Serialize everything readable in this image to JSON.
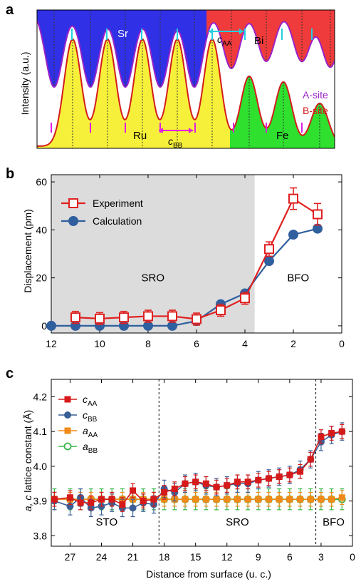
{
  "panels": {
    "a": "a",
    "b": "b",
    "c": "c"
  },
  "chart_data": [
    {
      "type": "line",
      "panel": "a",
      "ylabel": "Intensity (a.u.)",
      "xlabel": "",
      "a_site_peaks": 8,
      "b_site_peaks": 9,
      "labels": {
        "sr": "Sr",
        "bi": "Bi",
        "ru": "Ru",
        "fe": "Fe",
        "caa_main": "c",
        "caa_sub": "AA",
        "cbb_main": "c",
        "cbb_sub": "BB",
        "a_site": "A-site",
        "b_site": "B-site"
      },
      "colors": {
        "sr_fill": "#3030e6",
        "bi_fill": "#ef3b3b",
        "ru_fill": "#f7f03a",
        "fe_fill": "#2fe02f",
        "a_curve": "#9a22c8",
        "b_curve": "#d41c1c",
        "marker_cyan": "#22d0e0",
        "marker_magenta": "#e020e0"
      }
    },
    {
      "type": "line",
      "panel": "b",
      "title": "",
      "xlabel": "",
      "ylabel": "Displacement (pm)",
      "xlim": [
        12,
        0
      ],
      "ylim": [
        -3,
        63
      ],
      "xticks": [
        "12",
        "10",
        "8",
        "6",
        "4",
        "2",
        "0"
      ],
      "xtick_values": [
        12,
        10,
        8,
        6,
        4,
        2,
        0
      ],
      "yticks": [
        "0",
        "20",
        "40",
        "60"
      ],
      "ytick_values": [
        0,
        20,
        40,
        60
      ],
      "regions": [
        {
          "label": "SRO",
          "from": 12,
          "to": 3.6,
          "shaded": true
        },
        {
          "label": "BFO",
          "from": 3.6,
          "to": 0,
          "shaded": false
        }
      ],
      "legend_position": "top-left",
      "series": [
        {
          "name": "Experiment",
          "color": "#e02020",
          "marker": "open-square",
          "x": [
            11,
            10,
            9,
            8,
            7,
            6,
            5,
            4,
            3,
            2,
            1
          ],
          "y": [
            3.5,
            3,
            3.5,
            4,
            4,
            2.8,
            6.5,
            11.5,
            32,
            53,
            46.5
          ],
          "err": [
            2.5,
            2.5,
            2.5,
            2.5,
            2.5,
            2.5,
            2.5,
            2.5,
            3,
            4.5,
            4.5
          ]
        },
        {
          "name": "Calculation",
          "color": "#2f5f9e",
          "marker": "filled-circle",
          "x": [
            12,
            11,
            10,
            9,
            8,
            7,
            6,
            5,
            4,
            3,
            2,
            1
          ],
          "y": [
            0,
            0,
            0,
            0,
            0,
            0,
            2,
            9,
            13.5,
            27,
            38,
            40.5
          ],
          "err": []
        }
      ]
    },
    {
      "type": "line",
      "panel": "c",
      "title": "",
      "xlabel": "Distance from surface (u. c.)",
      "ylabel_main": "a, c",
      "ylabel_rest": " lattice constant (Å)",
      "xlim": [
        28.8,
        0
      ],
      "ylim": [
        3.77,
        4.25
      ],
      "xticks": [
        "27",
        "24",
        "21",
        "18",
        "15",
        "12",
        "9",
        "6",
        "3",
        "0"
      ],
      "xtick_values": [
        27,
        24,
        21,
        18,
        15,
        12,
        9,
        6,
        3,
        0
      ],
      "yticks": [
        "3.8",
        "3.9",
        "4.0",
        "4.1",
        "4.2"
      ],
      "ytick_values": [
        3.8,
        3.9,
        4.0,
        4.1,
        4.2
      ],
      "dividers": [
        18.5,
        3.5
      ],
      "regions": [
        {
          "label": "STO",
          "center": 23.5
        },
        {
          "label": "SRO",
          "center": 11
        },
        {
          "label": "BFO",
          "center": 1.8
        }
      ],
      "legend_position": "top-left",
      "series": [
        {
          "name_main": "c",
          "name_sub": "AA",
          "color": "#d61a1a",
          "marker": "filled-square",
          "x": [
            28.5,
            27,
            26,
            25,
            24,
            23,
            22,
            21,
            20,
            19,
            18,
            17,
            16,
            15,
            14,
            13,
            12,
            11,
            10,
            9,
            8,
            7,
            6,
            5,
            4,
            3,
            2,
            1
          ],
          "y": [
            3.905,
            3.91,
            3.895,
            3.895,
            3.905,
            3.905,
            3.89,
            3.93,
            3.9,
            3.905,
            3.925,
            3.935,
            3.95,
            3.955,
            3.95,
            3.94,
            3.945,
            3.955,
            3.955,
            3.96,
            3.965,
            3.97,
            3.975,
            3.985,
            4.02,
            4.085,
            4.095,
            4.1
          ],
          "err": [
            0.02
          ]
        },
        {
          "name_main": "c",
          "name_sub": "BB",
          "color": "#3a5f96",
          "marker": "filled-circle",
          "x": [
            28.5,
            27,
            26,
            25,
            24,
            23,
            22,
            21,
            20,
            19,
            18,
            17,
            16,
            15,
            14,
            13,
            12,
            11,
            10,
            9,
            8,
            7,
            6,
            5,
            4,
            3,
            2,
            1
          ],
          "y": [
            3.9,
            3.885,
            3.91,
            3.88,
            3.885,
            3.895,
            3.88,
            3.88,
            3.895,
            3.89,
            3.935,
            3.925,
            3.95,
            3.955,
            3.945,
            3.94,
            3.945,
            3.95,
            3.95,
            3.96,
            3.965,
            3.97,
            3.975,
            3.99,
            4.02,
            4.07,
            4.09,
            4.1
          ],
          "err": [
            0.025
          ]
        },
        {
          "name_main": "a",
          "name_sub": "AA",
          "color": "#f08a18",
          "marker": "filled-square",
          "x": [
            28.5,
            27,
            26,
            25,
            24,
            23,
            22,
            21,
            20,
            19,
            18,
            17,
            16,
            15,
            14,
            13,
            12,
            11,
            10,
            9,
            8,
            7,
            6,
            5,
            4,
            3,
            2,
            1
          ],
          "y": [
            3.905,
            3.905,
            3.905,
            3.905,
            3.905,
            3.905,
            3.905,
            3.905,
            3.905,
            3.905,
            3.905,
            3.905,
            3.905,
            3.905,
            3.905,
            3.905,
            3.905,
            3.905,
            3.905,
            3.905,
            3.905,
            3.905,
            3.905,
            3.905,
            3.905,
            3.905,
            3.905,
            3.91
          ],
          "err": [
            0.02
          ]
        },
        {
          "name_main": "a",
          "name_sub": "BB",
          "color": "#3ab54a",
          "marker": "open-circle",
          "x": [
            28.5,
            27,
            26,
            25,
            24,
            23,
            22,
            21,
            20,
            19,
            18,
            17,
            16,
            15,
            14,
            13,
            12,
            11,
            10,
            9,
            8,
            7,
            6,
            5,
            4,
            3,
            2,
            1
          ],
          "y": [
            3.905,
            3.905,
            3.905,
            3.905,
            3.905,
            3.905,
            3.905,
            3.905,
            3.905,
            3.905,
            3.905,
            3.905,
            3.905,
            3.905,
            3.905,
            3.905,
            3.905,
            3.905,
            3.905,
            3.905,
            3.905,
            3.905,
            3.905,
            3.905,
            3.905,
            3.905,
            3.905,
            3.905
          ],
          "err": [
            0.03
          ]
        }
      ]
    }
  ]
}
